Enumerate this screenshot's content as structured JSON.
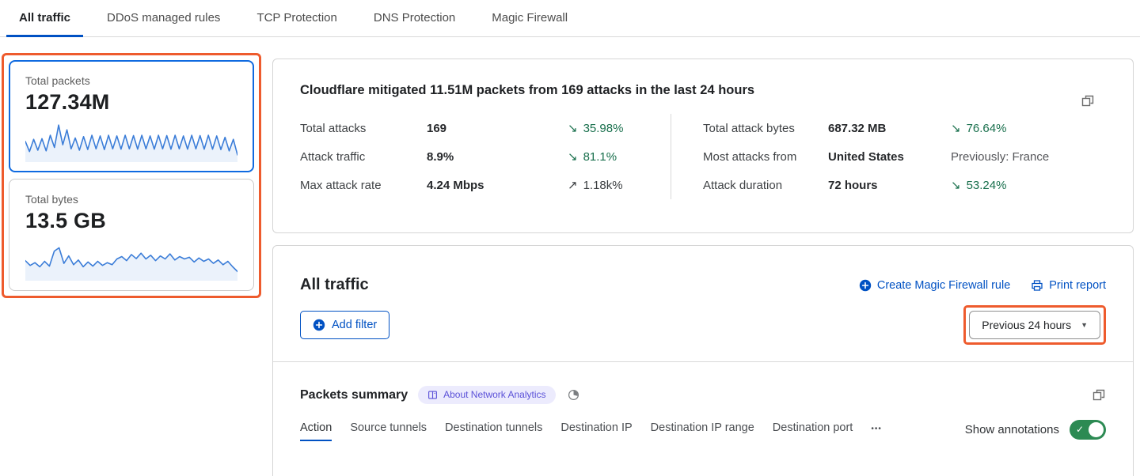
{
  "colors": {
    "accent": "#0051c3",
    "highlight": "#ee5b2d",
    "green_delta": "#186f4c",
    "toggle": "#2c8a53",
    "spark": "#3b7dd8",
    "purple_bg": "#ecebfd",
    "purple_text": "#5b51d8",
    "card_border_active": "#0f6ae0"
  },
  "tabs": {
    "items": [
      {
        "label": "All traffic"
      },
      {
        "label": "DDoS managed rules"
      },
      {
        "label": "TCP Protection"
      },
      {
        "label": "DNS Protection"
      },
      {
        "label": "Magic Firewall"
      }
    ]
  },
  "sidebar": {
    "cards": [
      {
        "label": "Total packets",
        "value": "127.34M",
        "spark": [
          52,
          22,
          58,
          26,
          60,
          24,
          70,
          34,
          100,
          42,
          86,
          30,
          62,
          26,
          66,
          28,
          70,
          30,
          68,
          28,
          70,
          30,
          68,
          29,
          70,
          30,
          69,
          29,
          70,
          30,
          68,
          29,
          70,
          30,
          69,
          29,
          70,
          30,
          68,
          29,
          70,
          30,
          69,
          29,
          70,
          29,
          68,
          28,
          64,
          24,
          58,
          12
        ]
      },
      {
        "label": "Total bytes",
        "value": "13.5 GB",
        "spark": [
          50,
          36,
          44,
          32,
          48,
          34,
          78,
          88,
          42,
          64,
          38,
          52,
          32,
          46,
          34,
          48,
          36,
          44,
          38,
          55,
          62,
          50,
          68,
          56,
          72,
          55,
          66,
          50,
          64,
          55,
          70,
          52,
          62,
          55,
          60,
          46,
          58,
          48,
          55,
          42,
          52,
          38,
          48,
          32,
          18
        ]
      }
    ]
  },
  "summary_panel": {
    "title": "Cloudflare mitigated 11.51M packets from 169 attacks in the last 24 hours",
    "stats_left": [
      {
        "label": "Total attacks",
        "value": "169",
        "arrow": "↘",
        "delta": "35.98%",
        "tone": "green"
      },
      {
        "label": "Attack traffic",
        "value": "8.9%",
        "arrow": "↘",
        "delta": "81.1%",
        "tone": "green"
      },
      {
        "label": "Max attack rate",
        "value": "4.24 Mbps",
        "arrow": "↗",
        "delta": "1.18k%",
        "tone": "neutral"
      }
    ],
    "stats_right": [
      {
        "label": "Total attack bytes",
        "value": "687.32 MB",
        "arrow": "↘",
        "delta": "76.64%",
        "tone": "green"
      },
      {
        "label": "Most attacks from",
        "value": "United States",
        "arrow": "",
        "delta": "Previously: France",
        "tone": "muted"
      },
      {
        "label": "Attack duration",
        "value": "72 hours",
        "arrow": "↘",
        "delta": "53.24%",
        "tone": "green"
      }
    ]
  },
  "traffic_panel": {
    "title": "All traffic",
    "create_rule_label": "Create Magic Firewall rule",
    "print_label": "Print report",
    "add_filter_label": "Add filter",
    "time_range_label": "Previous 24 hours",
    "packets_summary": {
      "title": "Packets summary",
      "badge_label": "About Network Analytics",
      "tabs": [
        "Action",
        "Source tunnels",
        "Destination tunnels",
        "Destination IP",
        "Destination IP range",
        "Destination port"
      ],
      "more_label": "•••",
      "show_annotations_label": "Show annotations"
    }
  }
}
